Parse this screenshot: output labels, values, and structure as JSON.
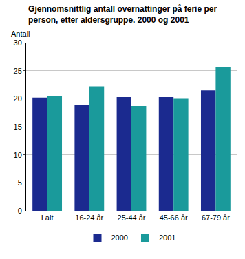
{
  "chart_data": {
    "type": "bar",
    "title": "Gjennomsnittlig antall overnattinger på ferie per person, etter aldersgruppe. 2000 og 2001",
    "y_label": "Antall",
    "categories": [
      "I alt",
      "16-24 år",
      "25-44 år",
      "45-66 år",
      "67-79 år"
    ],
    "series": [
      {
        "name": "2000",
        "color": "#1b2a8f",
        "values": [
          20.2,
          18.8,
          20.3,
          20.3,
          21.5
        ]
      },
      {
        "name": "2001",
        "color": "#1a9a9b",
        "values": [
          20.5,
          22.2,
          18.7,
          20.1,
          25.7
        ]
      }
    ],
    "ylim": [
      0,
      30
    ],
    "yticks": [
      0,
      5,
      10,
      15,
      20,
      25,
      30
    ],
    "grid": true,
    "legend": "bottom"
  }
}
